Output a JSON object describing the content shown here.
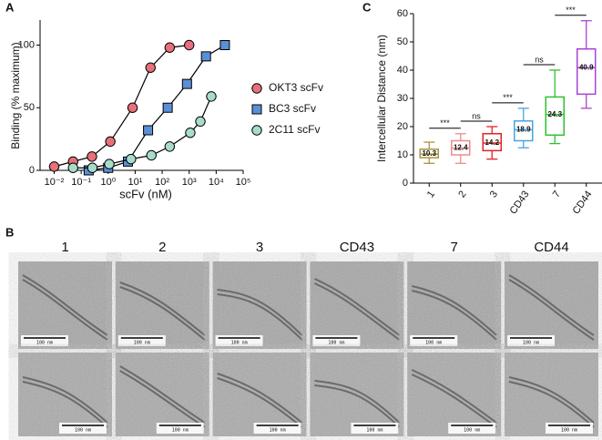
{
  "panel_labels": [
    "A",
    "B",
    "C"
  ],
  "chart_data": [
    {
      "type": "line",
      "xlabel": "scFv (nM)",
      "ylabel": "Binding (% maximum)",
      "xscale": "log",
      "xlim": [
        0.003,
        100000
      ],
      "ylim": [
        0,
        120
      ],
      "xticks": [
        {
          "value": 0.01,
          "label": "10⁻²"
        },
        {
          "value": 0.1,
          "label": "10⁻¹"
        },
        {
          "value": 1,
          "label": "10⁰"
        },
        {
          "value": 10,
          "label": "10¹"
        },
        {
          "value": 100,
          "label": "10²"
        },
        {
          "value": 1000,
          "label": "10³"
        },
        {
          "value": 10000,
          "label": "10⁴"
        },
        {
          "value": 100000,
          "label": "10⁵"
        }
      ],
      "yticks": [
        0,
        50,
        100
      ],
      "legend": "right",
      "series": [
        {
          "name": "OKT3 scFv",
          "color": "#e8707a",
          "marker": "circle",
          "x": [
            0.01,
            0.05,
            0.25,
            1.2,
            8,
            37,
            190,
            1000
          ],
          "values": [
            3,
            7,
            11,
            23,
            50,
            82,
            98,
            100
          ]
        },
        {
          "name": "BC3 scFv",
          "color": "#5b8fd6",
          "marker": "square",
          "x": [
            0.19,
            1,
            5.4,
            30,
            160,
            830,
            4200,
            21000
          ],
          "values": [
            0,
            2,
            7,
            32,
            50,
            69,
            91,
            100
          ]
        },
        {
          "name": "2C11 scFv",
          "color": "#a8dcc8",
          "marker": "circle",
          "x": [
            0.05,
            0.26,
            1.1,
            7,
            40,
            190,
            1100,
            2600,
            6600
          ],
          "values": [
            2,
            2,
            5,
            9,
            12,
            19,
            30,
            39,
            59
          ]
        }
      ]
    },
    {
      "type": "box",
      "ylabel": "Intercellular Distance (nm)",
      "categories": [
        "1",
        "2",
        "3",
        "CD43",
        "7",
        "CD44"
      ],
      "colors": [
        "#a89440",
        "#f08a8a",
        "#e02424",
        "#4aa3e0",
        "#2fc02f",
        "#a844d4"
      ],
      "ylim": [
        0,
        60
      ],
      "yticks": [
        0,
        10,
        20,
        30,
        40,
        50,
        60
      ],
      "whisker_low": [
        7,
        7,
        8.5,
        12.5,
        14,
        26.5
      ],
      "q1": [
        9,
        10,
        11.5,
        15,
        17,
        31.5
      ],
      "median": [
        10.3,
        12.4,
        14.2,
        18.9,
        24.3,
        40.9
      ],
      "q3": [
        12,
        15,
        17.5,
        22,
        30.5,
        47.5
      ],
      "whisker_high": [
        14.5,
        17.5,
        20,
        26.5,
        40,
        57.5
      ],
      "comparisons": [
        "***",
        "ns",
        "***",
        "ns",
        "***"
      ]
    }
  ],
  "micrographs": {
    "columns": [
      "1",
      "2",
      "3",
      "CD43",
      "7",
      "CD44"
    ],
    "scale_label": "100 nm"
  }
}
